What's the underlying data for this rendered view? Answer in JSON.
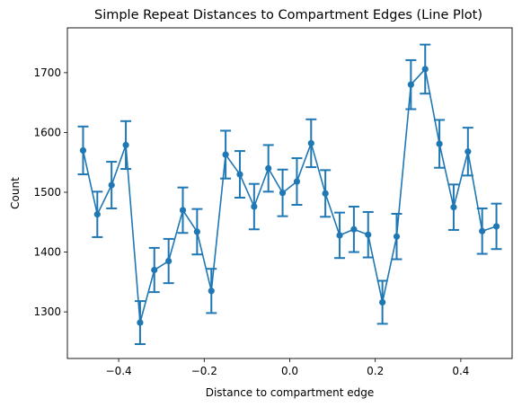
{
  "chart_data": {
    "type": "line",
    "title": "Simple Repeat Distances to Compartment Edges (Line Plot)",
    "xlabel": "Distance to compartment edge",
    "ylabel": "Count",
    "xlim": [
      -0.52,
      0.52
    ],
    "ylim": [
      1222,
      1775
    ],
    "xticks": [
      -0.4,
      -0.2,
      0.0,
      0.2,
      0.4
    ],
    "xtick_labels": [
      "−0.4",
      "−0.2",
      "0.0",
      "0.2",
      "0.4"
    ],
    "yticks": [
      1300,
      1400,
      1500,
      1600,
      1700
    ],
    "ytick_labels": [
      "1300",
      "1400",
      "1500",
      "1600",
      "1700"
    ],
    "grid": false,
    "series": [
      {
        "color": "#1f77b4",
        "marker": "circle",
        "error_bars": true,
        "x": [
          -0.4833,
          -0.45,
          -0.4167,
          -0.3833,
          -0.35,
          -0.3167,
          -0.2833,
          -0.25,
          -0.2167,
          -0.1833,
          -0.15,
          -0.1167,
          -0.0833,
          -0.05,
          -0.0167,
          0.0167,
          0.05,
          0.0833,
          0.1167,
          0.15,
          0.1833,
          0.2167,
          0.25,
          0.2833,
          0.3167,
          0.35,
          0.3833,
          0.4167,
          0.45,
          0.4833
        ],
        "y": [
          1570,
          1463,
          1512,
          1579,
          1282,
          1370,
          1385,
          1470,
          1434,
          1335,
          1563,
          1530,
          1476,
          1540,
          1499,
          1518,
          1582,
          1498,
          1428,
          1438,
          1429,
          1316,
          1426,
          1680,
          1706,
          1581,
          1475,
          1568,
          1435,
          1443
        ],
        "err": [
          40,
          38,
          39,
          40,
          36,
          37,
          37,
          38,
          38,
          37,
          40,
          39,
          38,
          39,
          39,
          39,
          40,
          39,
          38,
          38,
          38,
          36,
          38,
          41,
          41,
          40,
          38,
          40,
          38,
          38
        ]
      }
    ]
  }
}
